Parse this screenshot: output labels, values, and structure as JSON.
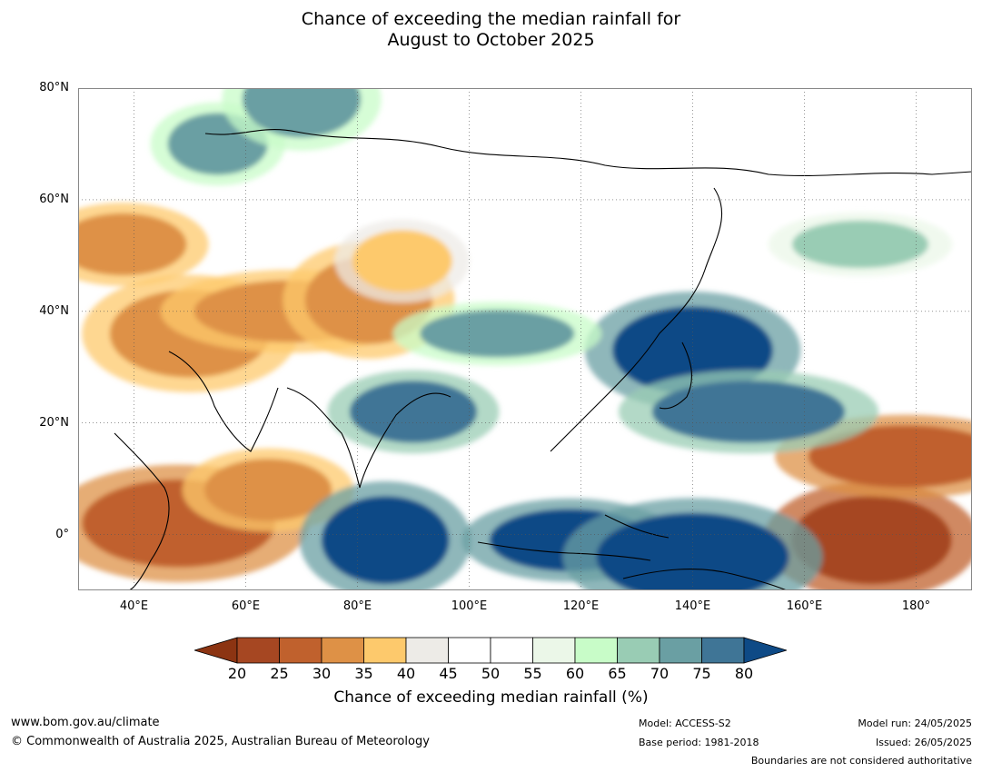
{
  "title": {
    "line1": "Chance of exceeding the median rainfall for",
    "line2": "August to October 2025"
  },
  "map": {
    "lat_ticks": [
      "80°N",
      "60°N",
      "40°N",
      "20°N",
      "0°"
    ],
    "lon_ticks": [
      "40°E",
      "60°E",
      "80°E",
      "100°E",
      "120°E",
      "140°E",
      "160°E",
      "180°"
    ],
    "extent": {
      "lon": [
        30,
        190
      ],
      "lat": [
        -10,
        80
      ]
    },
    "features": [
      {
        "name": "dry-eastern-europe",
        "lon": 38,
        "lat": 52,
        "value": 30
      },
      {
        "name": "dry-middle-east",
        "lon": 50,
        "lat": 36,
        "value": 30
      },
      {
        "name": "dry-central-asia",
        "lon": 68,
        "lat": 40,
        "value": 30
      },
      {
        "name": "dry-tarim-basin",
        "lon": 82,
        "lat": 42,
        "value": 30
      },
      {
        "name": "dry-mongolia-west",
        "lon": 88,
        "lat": 49,
        "value": 35
      },
      {
        "name": "dry-horn-of-africa",
        "lon": 48,
        "lat": 2,
        "value": 25
      },
      {
        "name": "dry-arabian-sea",
        "lon": 64,
        "lat": 8,
        "value": 30
      },
      {
        "name": "dry-central-pacific",
        "lon": 172,
        "lat": -1,
        "value": 20
      },
      {
        "name": "dry-north-pacific",
        "lon": 178,
        "lat": 14,
        "value": 25
      },
      {
        "name": "wet-indian-ocean",
        "lon": 85,
        "lat": -1,
        "value": 80
      },
      {
        "name": "wet-maritime-continent",
        "lon": 118,
        "lat": -1,
        "value": 80
      },
      {
        "name": "wet-west-pacific",
        "lon": 140,
        "lat": -4,
        "value": 80
      },
      {
        "name": "wet-bay-of-bengal",
        "lon": 90,
        "lat": 22,
        "value": 75
      },
      {
        "name": "wet-japan-sea",
        "lon": 140,
        "lat": 33,
        "value": 80
      },
      {
        "name": "wet-west-pacific-north",
        "lon": 150,
        "lat": 22,
        "value": 75
      },
      {
        "name": "wet-china-north",
        "lon": 105,
        "lat": 36,
        "value": 70
      },
      {
        "name": "wet-siberia",
        "lon": 55,
        "lat": 70,
        "value": 70
      },
      {
        "name": "wet-arctic-ocean",
        "lon": 70,
        "lat": 78,
        "value": 70
      },
      {
        "name": "wet-east-siberia",
        "lon": 170,
        "lat": 52,
        "value": 65
      }
    ]
  },
  "colorbar": {
    "label": "Chance of exceeding median rainfall (%)",
    "ticks": [
      "20",
      "25",
      "30",
      "35",
      "40",
      "45",
      "50",
      "55",
      "60",
      "65",
      "70",
      "75",
      "80"
    ],
    "under_color": "#8c3412",
    "over_color": "#0e4a86",
    "colors": [
      "#a64722",
      "#c0612d",
      "#de9146",
      "#fdc96c",
      "#edebe7",
      "#ffffff",
      "#ffffff",
      "#ebf7e8",
      "#c8fcc8",
      "#99ccb4",
      "#6a9fa3",
      "#3f7596"
    ]
  },
  "footer": {
    "url": "www.bom.gov.au/climate",
    "copyright": "© Commonwealth of Australia 2025, Australian Bureau of Meteorology",
    "model": "Model: ACCESS-S2",
    "base_period": "Base period: 1981-2018",
    "model_run": "Model run: 24/05/2025",
    "issued": "Issued: 26/05/2025",
    "disclaimer": "Boundaries are not considered authoritative"
  }
}
